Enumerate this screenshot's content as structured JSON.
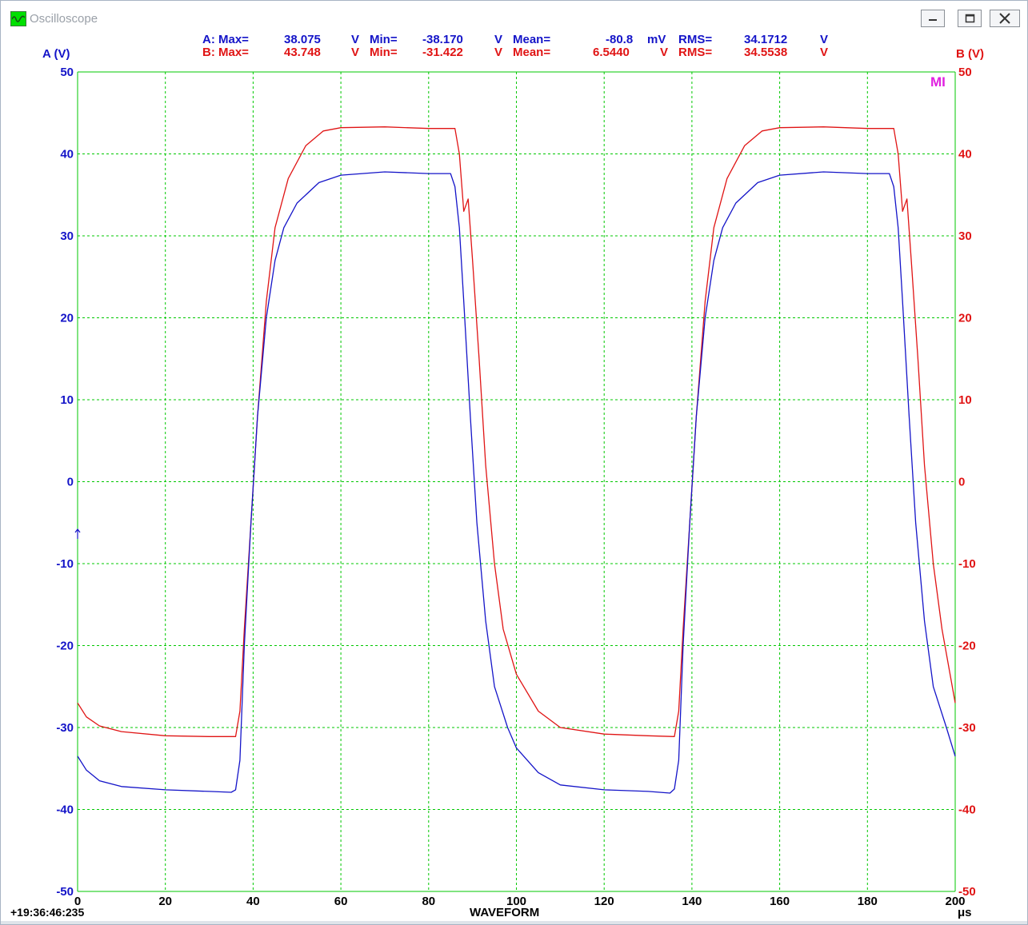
{
  "window": {
    "title": "Oscilloscope",
    "controls": [
      "minimize-icon",
      "maximize-icon",
      "close-icon"
    ]
  },
  "stats": {
    "a": {
      "label": "A: Max=",
      "max": "38.075",
      "max_unit": "V",
      "min_label": "Min=",
      "min": "-38.170",
      "min_unit": "V",
      "mean_label": "Mean=",
      "mean": "-80.8",
      "mean_unit": "mV",
      "rms_label": "RMS=",
      "rms": "34.1712",
      "rms_unit": "V"
    },
    "b": {
      "label": "B: Max=",
      "max": "43.748",
      "max_unit": "V",
      "min_label": "Min=",
      "min": "-31.422",
      "min_unit": "V",
      "mean_label": "Mean=",
      "mean": "6.5440",
      "mean_unit": "V",
      "rms_label": "RMS=",
      "rms": "34.5538",
      "rms_unit": "V"
    }
  },
  "status": {
    "timestamp": "+19:36:46:235",
    "marker": "MI"
  },
  "colors": {
    "channel_a": "#1414c8",
    "channel_b": "#e01414",
    "grid": "#00c800",
    "marker": "#e020e0"
  },
  "chart_data": {
    "type": "line",
    "xlabel": "WAVEFORM",
    "x_unit": "μs",
    "ylabel_left": "A (V)",
    "ylabel_right": "B (V)",
    "xlim": [
      0,
      200
    ],
    "ylim": [
      -50,
      50
    ],
    "x_ticks": [
      "0",
      "20",
      "40",
      "60",
      "80",
      "100",
      "120",
      "140",
      "160",
      "180",
      "200"
    ],
    "y_ticks": [
      "50",
      "40",
      "30",
      "20",
      "10",
      "0",
      "-10",
      "-20",
      "-30",
      "-40",
      "-50"
    ],
    "grid": true,
    "series": [
      {
        "name": "A",
        "color": "#1414c8",
        "points": [
          [
            0,
            -33.5
          ],
          [
            2,
            -35.2
          ],
          [
            5,
            -36.5
          ],
          [
            10,
            -37.2
          ],
          [
            20,
            -37.6
          ],
          [
            30,
            -37.8
          ],
          [
            35,
            -37.9
          ],
          [
            36,
            -37.6
          ],
          [
            37,
            -34
          ],
          [
            38,
            -20
          ],
          [
            39.5,
            -5
          ],
          [
            41,
            8
          ],
          [
            43,
            20
          ],
          [
            45,
            27
          ],
          [
            47,
            31
          ],
          [
            50,
            34
          ],
          [
            55,
            36.5
          ],
          [
            60,
            37.4
          ],
          [
            70,
            37.8
          ],
          [
            80,
            37.6
          ],
          [
            85,
            37.6
          ],
          [
            86,
            36
          ],
          [
            87,
            31
          ],
          [
            88,
            22
          ],
          [
            89.5,
            8
          ],
          [
            91,
            -5
          ],
          [
            93,
            -17
          ],
          [
            95,
            -25
          ],
          [
            98,
            -30
          ],
          [
            100,
            -32.5
          ],
          [
            105,
            -35.5
          ],
          [
            110,
            -37
          ],
          [
            120,
            -37.6
          ],
          [
            130,
            -37.8
          ],
          [
            135,
            -38
          ],
          [
            136,
            -37.5
          ],
          [
            137,
            -34
          ],
          [
            138,
            -20
          ],
          [
            139.5,
            -5
          ],
          [
            141,
            8
          ],
          [
            143,
            20
          ],
          [
            145,
            27
          ],
          [
            147,
            31
          ],
          [
            150,
            34
          ],
          [
            155,
            36.5
          ],
          [
            160,
            37.4
          ],
          [
            170,
            37.8
          ],
          [
            180,
            37.6
          ],
          [
            185,
            37.6
          ],
          [
            186,
            36
          ],
          [
            187,
            31
          ],
          [
            188,
            22
          ],
          [
            189.5,
            8
          ],
          [
            191,
            -5
          ],
          [
            193,
            -17
          ],
          [
            195,
            -25
          ],
          [
            198,
            -30
          ],
          [
            200,
            -33.5
          ]
        ]
      },
      {
        "name": "B",
        "color": "#e01414",
        "points": [
          [
            0,
            -27
          ],
          [
            2,
            -28.7
          ],
          [
            5,
            -29.8
          ],
          [
            10,
            -30.5
          ],
          [
            20,
            -31
          ],
          [
            30,
            -31.1
          ],
          [
            36,
            -31.1
          ],
          [
            37,
            -28
          ],
          [
            38,
            -18
          ],
          [
            39.5,
            -5
          ],
          [
            41,
            8
          ],
          [
            43,
            22
          ],
          [
            45,
            31
          ],
          [
            48,
            37
          ],
          [
            52,
            41
          ],
          [
            56,
            42.8
          ],
          [
            60,
            43.2
          ],
          [
            70,
            43.3
          ],
          [
            80,
            43.1
          ],
          [
            86,
            43.1
          ],
          [
            87,
            40
          ],
          [
            88,
            33
          ],
          [
            89,
            34.5
          ],
          [
            90,
            27
          ],
          [
            91.5,
            15
          ],
          [
            93,
            2
          ],
          [
            95,
            -10
          ],
          [
            97,
            -18
          ],
          [
            100,
            -23.5
          ],
          [
            105,
            -28
          ],
          [
            110,
            -30
          ],
          [
            120,
            -30.8
          ],
          [
            130,
            -31
          ],
          [
            136,
            -31.1
          ],
          [
            137,
            -28
          ],
          [
            138,
            -18
          ],
          [
            139.5,
            -5
          ],
          [
            141,
            8
          ],
          [
            143,
            22
          ],
          [
            145,
            31
          ],
          [
            148,
            37
          ],
          [
            152,
            41
          ],
          [
            156,
            42.8
          ],
          [
            160,
            43.2
          ],
          [
            170,
            43.3
          ],
          [
            180,
            43.1
          ],
          [
            186,
            43.1
          ],
          [
            187,
            40
          ],
          [
            188,
            33
          ],
          [
            189,
            34.5
          ],
          [
            190,
            27
          ],
          [
            191.5,
            15
          ],
          [
            193,
            2
          ],
          [
            195,
            -10
          ],
          [
            197,
            -18
          ],
          [
            200,
            -27
          ]
        ]
      }
    ]
  }
}
